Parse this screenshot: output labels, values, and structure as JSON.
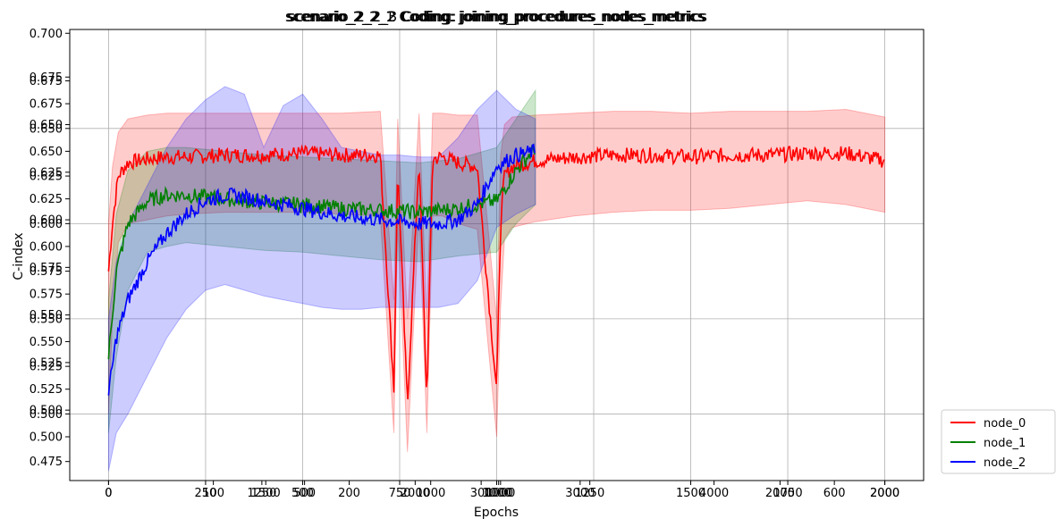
{
  "chart_data": {
    "type": "line",
    "titles": [
      "scenario_2_2_1 Coding: joining_procedures_nodes_metrics",
      "scenario_2_2_2 Coding: joining_procedures_nodes_metrics",
      "scenario_2_2_3 Coding: joining_procedures_nodes_metrics"
    ],
    "xlabel": "Epochs",
    "ylabel": "C-index",
    "xlim": [
      -100,
      2100
    ],
    "ylim": [
      0.465,
      0.702
    ],
    "grid": true,
    "legend_position": "lower-right outside",
    "x_tick_labels": [
      "0",
      "0",
      "250",
      "100",
      "1250",
      "1500",
      "500",
      "500",
      "200",
      "750",
      "2000",
      "1000",
      "300",
      "1000",
      "1000",
      "1000",
      "3000",
      "1250",
      "1500",
      "4000",
      "2000",
      "1750",
      "600",
      "2000",
      "2000"
    ],
    "y_tick_labels_groups": [
      [
        "0.475",
        "0.500",
        "0.525",
        "0.550",
        "0.575",
        "0.600",
        "0.625",
        "0.650",
        "0.675",
        "0.700"
      ],
      [
        "0.475",
        "0.500",
        "0.525",
        "0.550",
        "0.575",
        "0.600",
        "0.625",
        "0.650",
        "0.675"
      ],
      [
        "0.500",
        "0.525",
        "0.550",
        "0.575",
        "0.600",
        "0.625",
        "0.650",
        "0.675"
      ]
    ],
    "series": [
      {
        "name": "node_0",
        "color": "#ff0000",
        "x": [
          0,
          10,
          25,
          50,
          100,
          150,
          200,
          300,
          400,
          500,
          600,
          700,
          735,
          745,
          770,
          800,
          820,
          835,
          860,
          900,
          950,
          1000,
          1010,
          1020,
          1040,
          1100,
          1200,
          1300,
          1400,
          1500,
          1600,
          1700,
          1800,
          1900,
          2000
        ],
        "mean": [
          0.575,
          0.6,
          0.625,
          0.632,
          0.634,
          0.635,
          0.635,
          0.636,
          0.636,
          0.637,
          0.636,
          0.636,
          0.513,
          0.63,
          0.504,
          0.635,
          0.507,
          0.634,
          0.635,
          0.632,
          0.63,
          0.512,
          0.6,
          0.625,
          0.63,
          0.633,
          0.635,
          0.636,
          0.636,
          0.635,
          0.636,
          0.636,
          0.637,
          0.637,
          0.633
        ],
        "upper": [
          0.6,
          0.63,
          0.648,
          0.655,
          0.657,
          0.658,
          0.658,
          0.658,
          0.658,
          0.658,
          0.658,
          0.659,
          0.56,
          0.655,
          0.55,
          0.658,
          0.55,
          0.658,
          0.658,
          0.657,
          0.657,
          0.55,
          0.635,
          0.652,
          0.656,
          0.657,
          0.658,
          0.659,
          0.659,
          0.658,
          0.659,
          0.659,
          0.659,
          0.66,
          0.656
        ],
        "lower": [
          0.5,
          0.55,
          0.59,
          0.6,
          0.602,
          0.604,
          0.605,
          0.606,
          0.606,
          0.606,
          0.605,
          0.604,
          0.49,
          0.6,
          0.48,
          0.605,
          0.49,
          0.604,
          0.604,
          0.6,
          0.597,
          0.488,
          0.555,
          0.592,
          0.598,
          0.601,
          0.604,
          0.606,
          0.607,
          0.607,
          0.608,
          0.61,
          0.612,
          0.61,
          0.606
        ]
      },
      {
        "name": "node_1",
        "color": "#008000",
        "x": [
          0,
          20,
          50,
          100,
          150,
          200,
          300,
          400,
          500,
          600,
          700,
          800,
          900,
          1000,
          1050,
          1100
        ],
        "mean": [
          0.53,
          0.575,
          0.6,
          0.612,
          0.615,
          0.615,
          0.613,
          0.611,
          0.61,
          0.608,
          0.607,
          0.606,
          0.608,
          0.612,
          0.628,
          0.64
        ],
        "upper": [
          0.56,
          0.605,
          0.628,
          0.638,
          0.64,
          0.64,
          0.638,
          0.636,
          0.635,
          0.634,
          0.633,
          0.632,
          0.634,
          0.64,
          0.655,
          0.67
        ],
        "lower": [
          0.49,
          0.53,
          0.565,
          0.585,
          0.588,
          0.59,
          0.588,
          0.586,
          0.585,
          0.583,
          0.581,
          0.58,
          0.583,
          0.585,
          0.6,
          0.61
        ]
      },
      {
        "name": "node_2",
        "color": "#0000ff",
        "x": [
          0,
          20,
          50,
          100,
          150,
          200,
          250,
          300,
          350,
          400,
          450,
          500,
          550,
          600,
          650,
          700,
          750,
          800,
          850,
          900,
          950,
          1000,
          1050,
          1100
        ],
        "mean": [
          0.51,
          0.54,
          0.56,
          0.58,
          0.595,
          0.605,
          0.612,
          0.615,
          0.614,
          0.612,
          0.61,
          0.608,
          0.606,
          0.604,
          0.603,
          0.602,
          0.601,
          0.6,
          0.6,
          0.602,
          0.61,
          0.63,
          0.636,
          0.638
        ],
        "upper": [
          0.55,
          0.58,
          0.6,
          0.62,
          0.64,
          0.655,
          0.665,
          0.672,
          0.668,
          0.64,
          0.662,
          0.668,
          0.655,
          0.64,
          0.638,
          0.636,
          0.636,
          0.635,
          0.635,
          0.645,
          0.66,
          0.67,
          0.66,
          0.655
        ],
        "lower": [
          0.47,
          0.49,
          0.5,
          0.52,
          0.54,
          0.555,
          0.565,
          0.568,
          0.565,
          0.562,
          0.56,
          0.558,
          0.556,
          0.555,
          0.555,
          0.556,
          0.556,
          0.556,
          0.556,
          0.558,
          0.57,
          0.598,
          0.605,
          0.61
        ]
      }
    ]
  }
}
